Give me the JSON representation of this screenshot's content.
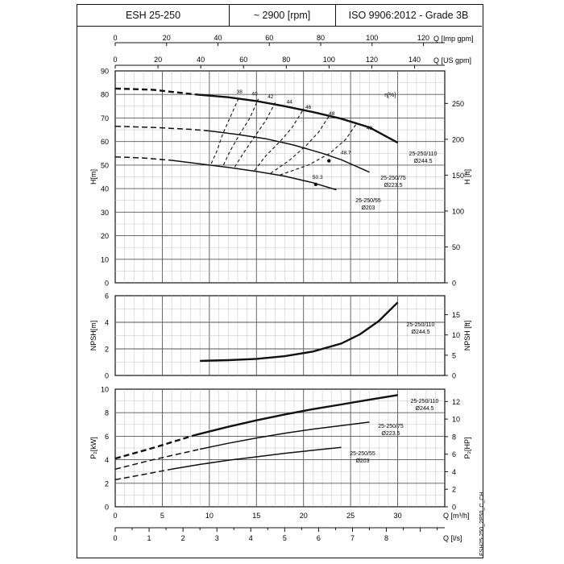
{
  "header": {
    "model": "ESH 25-250",
    "speed": "~ 2900 [rpm]",
    "standard": "ISO 9906:2012 - Grade 3B"
  },
  "footer": {
    "doc_code": "ESH25-250_2P50_C_CH"
  },
  "axes": {
    "q_imp": {
      "label": "Q [Imp gpm]",
      "ticks": [
        "0",
        "20",
        "40",
        "60",
        "80",
        "100",
        "120"
      ]
    },
    "q_us": {
      "label": "Q [US gpm]",
      "ticks": [
        "0",
        "20",
        "40",
        "60",
        "80",
        "100",
        "120",
        "140"
      ]
    },
    "q_m3h": {
      "label": "Q [m³/h]",
      "ticks": [
        "0",
        "5",
        "10",
        "15",
        "20",
        "25",
        "30"
      ]
    },
    "q_ls": {
      "label": "Q [l/s]",
      "ticks": [
        "0",
        "1",
        "2",
        "3",
        "4",
        "5",
        "6",
        "7",
        "8"
      ]
    }
  },
  "chart_data": [
    {
      "type": "line",
      "title": "",
      "xlabel": "Q [m³/h]",
      "ylabel": "H[m]",
      "ylabel_right": "H [ft]",
      "xlim": [
        0,
        35
      ],
      "ylim": [
        0,
        90
      ],
      "ylim_right_ticks": [
        "0",
        "50",
        "100",
        "150",
        "200",
        "250"
      ],
      "y_ticks": [
        "0",
        "10",
        "20",
        "30",
        "40",
        "50",
        "60",
        "70",
        "80",
        "90"
      ],
      "grid": true,
      "series": [
        {
          "name": "25-250/110",
          "sub": "Ø244.5",
          "solid_from": 8.5,
          "points": [
            [
              0,
              82.5
            ],
            [
              4,
              82
            ],
            [
              8.5,
              80
            ],
            [
              12,
              78.8
            ],
            [
              15,
              77.2
            ],
            [
              18,
              75
            ],
            [
              21,
              72.5
            ],
            [
              24,
              69.7
            ],
            [
              27,
              66
            ],
            [
              30,
              59.5
            ]
          ]
        },
        {
          "name": "25-250/75",
          "sub": "Ø223.5",
          "solid_from": 10,
          "points": [
            [
              0,
              66.5
            ],
            [
              4,
              66
            ],
            [
              8,
              65.2
            ],
            [
              10,
              64.5
            ],
            [
              13,
              63
            ],
            [
              16,
              61.2
            ],
            [
              19,
              58.5
            ],
            [
              22,
              55
            ],
            [
              24,
              52.3
            ],
            [
              27,
              47
            ]
          ]
        },
        {
          "name": "25-250/55",
          "sub": "Ø203",
          "solid_from": 6,
          "points": [
            [
              0,
              53.5
            ],
            [
              3,
              53
            ],
            [
              6,
              52
            ],
            [
              9,
              50.5
            ],
            [
              12,
              49
            ],
            [
              15,
              47.3
            ],
            [
              18,
              45.3
            ],
            [
              21,
              42.5
            ],
            [
              23.5,
              39.5
            ]
          ]
        }
      ],
      "efficiency": {
        "label": "η[%]",
        "values": [
          "38",
          "40",
          "42",
          "44",
          "46",
          "48",
          "49",
          "48.7",
          "50.3"
        ]
      }
    },
    {
      "type": "line",
      "title": "",
      "xlabel": "Q [m³/h]",
      "ylabel": "NPSH[m]",
      "ylabel_right": "NPSH [ft]",
      "xlim": [
        0,
        35
      ],
      "ylim": [
        0,
        6
      ],
      "y_ticks": [
        "0",
        "2",
        "4",
        "6"
      ],
      "ylim_right_ticks": [
        "0",
        "5",
        "10",
        "15"
      ],
      "grid": true,
      "series": [
        {
          "name": "25-250/110",
          "sub": "Ø244.5",
          "points": [
            [
              9,
              1.1
            ],
            [
              12,
              1.15
            ],
            [
              15,
              1.25
            ],
            [
              18,
              1.45
            ],
            [
              21,
              1.8
            ],
            [
              24,
              2.4
            ],
            [
              26,
              3.1
            ],
            [
              28,
              4.1
            ],
            [
              30,
              5.5
            ]
          ]
        }
      ]
    },
    {
      "type": "line",
      "title": "",
      "xlabel": "Q [m³/h]",
      "ylabel": "P₂[kW]",
      "ylabel_right": "P₂[HP]",
      "xlim": [
        0,
        35
      ],
      "ylim": [
        0,
        10
      ],
      "y_ticks": [
        "0",
        "2",
        "4",
        "6",
        "8",
        "10"
      ],
      "ylim_right_ticks": [
        "0",
        "2",
        "4",
        "6",
        "8",
        "10",
        "12"
      ],
      "grid": true,
      "series": [
        {
          "name": "25-250/110",
          "sub": "Ø244.5",
          "solid_from": 8.5,
          "points": [
            [
              0,
              4.1
            ],
            [
              4,
              5
            ],
            [
              8.5,
              6.1
            ],
            [
              12,
              6.8
            ],
            [
              15,
              7.35
            ],
            [
              18,
              7.85
            ],
            [
              21,
              8.3
            ],
            [
              24,
              8.7
            ],
            [
              27,
              9.1
            ],
            [
              30,
              9.5
            ]
          ]
        },
        {
          "name": "25-250/75",
          "sub": "Ø223.5",
          "solid_from": 9,
          "points": [
            [
              0,
              3.2
            ],
            [
              4,
              4
            ],
            [
              9,
              4.9
            ],
            [
              12,
              5.4
            ],
            [
              15,
              5.85
            ],
            [
              18,
              6.25
            ],
            [
              21,
              6.6
            ],
            [
              24,
              6.9
            ],
            [
              27,
              7.2
            ]
          ]
        },
        {
          "name": "25-250/55",
          "sub": "Ø203",
          "solid_from": 6,
          "points": [
            [
              0,
              2.3
            ],
            [
              3,
              2.75
            ],
            [
              6,
              3.2
            ],
            [
              9,
              3.6
            ],
            [
              12,
              3.95
            ],
            [
              15,
              4.25
            ],
            [
              18,
              4.55
            ],
            [
              21,
              4.8
            ],
            [
              24,
              5.05
            ]
          ]
        }
      ]
    }
  ]
}
